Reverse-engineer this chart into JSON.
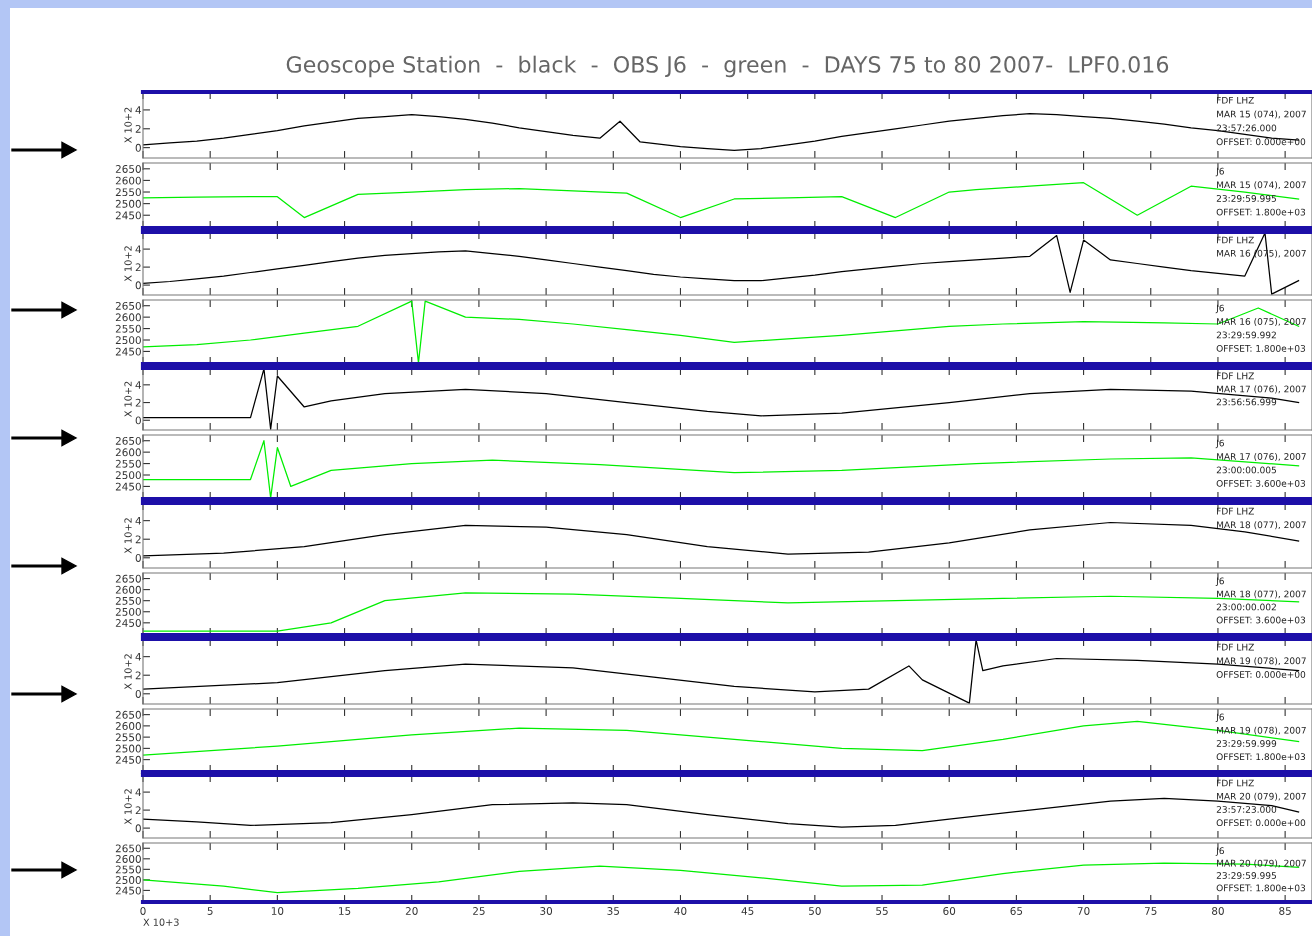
{
  "chart_data": [
    {
      "type": "line",
      "title": "Geoscope Station  -  black  -  OBS J6  -  green  -  DAYS 75 to 80 2007-  LPF0.016",
      "ylabel": "X 10+2",
      "tick_labels": "y",
      "xlim": [
        0,
        87
      ],
      "xticks": [
        0,
        5,
        10,
        15,
        20,
        25,
        30,
        35,
        40,
        45,
        50,
        55,
        60,
        65,
        70,
        75,
        80,
        85
      ],
      "ylim": [
        -1.1,
        5.9
      ],
      "yticks": [
        0,
        2,
        4
      ],
      "x": [
        0,
        2,
        4,
        6,
        8,
        10,
        12,
        14,
        16,
        18,
        20,
        22,
        24,
        26,
        28,
        30,
        32,
        34,
        35.5,
        37,
        40,
        42,
        44,
        46,
        48,
        50,
        52,
        54,
        56,
        58,
        60,
        62,
        64,
        66,
        68,
        70,
        72,
        74,
        76,
        78,
        80,
        82,
        84,
        86
      ],
      "series": [
        {
          "color": "#000000",
          "values": [
            0.3,
            0.5,
            0.7,
            1.0,
            1.4,
            1.8,
            2.3,
            2.7,
            3.1,
            3.3,
            3.5,
            3.3,
            3.0,
            2.6,
            2.1,
            1.7,
            1.3,
            1.0,
            2.8,
            0.6,
            0.1,
            -0.1,
            -0.3,
            -0.1,
            0.3,
            0.7,
            1.2,
            1.6,
            2.0,
            2.4,
            2.8,
            3.1,
            3.4,
            3.6,
            3.5,
            3.3,
            3.1,
            2.8,
            2.5,
            2.1,
            1.8,
            1.4,
            1.0,
            0.8
          ]
        }
      ],
      "annotations": [
        "FDF LHZ",
        "MAR 15 (074), 2007",
        "23:57:26.000",
        "OFFSET: 0.000e+00"
      ]
    },
    {
      "type": "line",
      "tick_labels": "y",
      "xlim": [
        0,
        87
      ],
      "xticks": [
        0,
        5,
        10,
        15,
        20,
        25,
        30,
        35,
        40,
        45,
        50,
        55,
        60,
        65,
        70,
        75,
        80,
        85
      ],
      "ylim": [
        2395,
        2675
      ],
      "yticks": [
        2450,
        2500,
        2550,
        2600,
        2650
      ],
      "x": [
        0,
        4,
        8,
        10,
        12,
        16,
        20,
        24,
        28,
        32,
        36,
        40,
        44,
        48,
        52,
        56,
        60,
        62,
        66,
        70,
        74,
        78,
        82,
        86
      ],
      "series": [
        {
          "color": "#00ee00",
          "values": [
            2525,
            2528,
            2530,
            2530,
            2440,
            2540,
            2550,
            2560,
            2565,
            2555,
            2545,
            2440,
            2520,
            2525,
            2530,
            2440,
            2550,
            2560,
            2575,
            2590,
            2450,
            2575,
            2550,
            2520
          ]
        }
      ],
      "annotations": [
        "J6",
        "MAR 15 (074), 2007",
        "23:29:59.995",
        "OFFSET: 1.800e+03"
      ]
    },
    {
      "type": "line",
      "ylabel": "X 10+2",
      "tick_labels": "y",
      "xlim": [
        0,
        87
      ],
      "xticks": [
        0,
        5,
        10,
        15,
        20,
        25,
        30,
        35,
        40,
        45,
        50,
        55,
        60,
        65,
        70,
        75,
        80,
        85
      ],
      "ylim": [
        -1.1,
        5.9
      ],
      "yticks": [
        0,
        2,
        4
      ],
      "x": [
        0,
        2,
        4,
        6,
        8,
        10,
        12,
        14,
        16,
        18,
        20,
        22,
        24,
        26,
        28,
        30,
        32,
        34,
        36,
        38,
        40,
        42,
        44,
        46,
        48,
        50,
        52,
        54,
        56,
        58,
        60,
        62,
        64,
        66,
        68,
        69,
        70,
        72,
        74,
        76,
        78,
        80,
        82,
        83.5,
        84,
        86
      ],
      "series": [
        {
          "color": "#000000",
          "values": [
            0.2,
            0.4,
            0.7,
            1.0,
            1.4,
            1.8,
            2.2,
            2.6,
            3.0,
            3.3,
            3.5,
            3.7,
            3.8,
            3.5,
            3.2,
            2.8,
            2.4,
            2.0,
            1.6,
            1.2,
            0.9,
            0.7,
            0.5,
            0.5,
            0.8,
            1.1,
            1.5,
            1.8,
            2.1,
            2.4,
            2.6,
            2.8,
            3.0,
            3.2,
            5.5,
            -0.8,
            5.0,
            2.8,
            2.4,
            2.0,
            1.6,
            1.3,
            1.0,
            5.8,
            -1.0,
            0.5
          ]
        }
      ],
      "annotations": [
        "FDF LHZ",
        "MAR 16 (075), 2007"
      ]
    },
    {
      "type": "line",
      "tick_labels": "y",
      "xlim": [
        0,
        87
      ],
      "xticks": [
        0,
        5,
        10,
        15,
        20,
        25,
        30,
        35,
        40,
        45,
        50,
        55,
        60,
        65,
        70,
        75,
        80,
        85
      ],
      "ylim": [
        2395,
        2675
      ],
      "yticks": [
        2450,
        2500,
        2550,
        2600,
        2650
      ],
      "x": [
        0,
        4,
        8,
        12,
        16,
        20,
        20.5,
        21,
        24,
        28,
        32,
        36,
        40,
        44,
        48,
        52,
        56,
        60,
        64,
        70,
        76,
        80,
        83,
        86
      ],
      "series": [
        {
          "color": "#00ee00",
          "values": [
            2470,
            2480,
            2500,
            2530,
            2560,
            2670,
            2400,
            2670,
            2600,
            2590,
            2570,
            2545,
            2520,
            2490,
            2505,
            2520,
            2540,
            2560,
            2570,
            2580,
            2575,
            2570,
            2640,
            2560
          ]
        }
      ],
      "annotations": [
        "J6",
        "MAR 16 (075), 2007",
        "23:29:59.992",
        "OFFSET: 1.800e+03"
      ]
    },
    {
      "type": "line",
      "ylabel": "X 10+2",
      "tick_labels": "y",
      "xlim": [
        0,
        87
      ],
      "xticks": [
        0,
        5,
        10,
        15,
        20,
        25,
        30,
        35,
        40,
        45,
        50,
        55,
        60,
        65,
        70,
        75,
        80,
        85
      ],
      "ylim": [
        -1.1,
        5.9
      ],
      "yticks": [
        0,
        2,
        4
      ],
      "x": [
        0,
        4,
        8,
        9,
        9.5,
        10,
        12,
        14,
        18,
        24,
        30,
        36,
        42,
        46,
        52,
        60,
        66,
        72,
        78,
        84,
        86
      ],
      "series": [
        {
          "color": "#000000",
          "values": [
            0.3,
            0.3,
            0.3,
            5.8,
            -1.0,
            5.0,
            1.5,
            2.2,
            3.0,
            3.5,
            3.0,
            2.0,
            1.0,
            0.5,
            0.8,
            2.0,
            3.0,
            3.5,
            3.3,
            2.5,
            2.0
          ]
        }
      ],
      "annotations": [
        "FDF LHZ",
        "MAR 17 (076), 2007",
        "23:56:56.999"
      ]
    },
    {
      "type": "line",
      "tick_labels": "y",
      "xlim": [
        0,
        87
      ],
      "xticks": [
        0,
        5,
        10,
        15,
        20,
        25,
        30,
        35,
        40,
        45,
        50,
        55,
        60,
        65,
        70,
        75,
        80,
        85
      ],
      "ylim": [
        2395,
        2675
      ],
      "yticks": [
        2450,
        2500,
        2550,
        2600,
        2650
      ],
      "x": [
        0,
        4,
        8,
        9,
        9.5,
        10,
        11,
        14,
        20,
        26,
        34,
        44,
        52,
        62,
        72,
        78,
        86
      ],
      "series": [
        {
          "color": "#00ee00",
          "values": [
            2480,
            2480,
            2480,
            2650,
            2400,
            2620,
            2450,
            2520,
            2550,
            2565,
            2545,
            2510,
            2520,
            2550,
            2570,
            2575,
            2540
          ]
        }
      ],
      "annotations": [
        "J6",
        "MAR 17 (076), 2007",
        "23:00:00.005",
        "OFFSET: 3.600e+03"
      ]
    },
    {
      "type": "line",
      "ylabel": "X 10+2",
      "tick_labels": "y",
      "xlim": [
        0,
        87
      ],
      "xticks": [
        0,
        5,
        10,
        15,
        20,
        25,
        30,
        35,
        40,
        45,
        50,
        55,
        60,
        65,
        70,
        75,
        80,
        85
      ],
      "ylim": [
        -1.1,
        5.9
      ],
      "yticks": [
        0,
        2,
        4
      ],
      "x": [
        0,
        6,
        12,
        18,
        24,
        30,
        36,
        42,
        48,
        54,
        60,
        66,
        72,
        78,
        82,
        86
      ],
      "series": [
        {
          "color": "#000000",
          "values": [
            0.2,
            0.5,
            1.2,
            2.5,
            3.5,
            3.3,
            2.5,
            1.2,
            0.4,
            0.6,
            1.6,
            3.0,
            3.8,
            3.5,
            2.8,
            1.8
          ]
        }
      ],
      "annotations": [
        "FDF LHZ",
        "MAR 18 (077), 2007"
      ]
    },
    {
      "type": "line",
      "tick_labels": "y",
      "xlim": [
        0,
        87
      ],
      "xticks": [
        0,
        5,
        10,
        15,
        20,
        25,
        30,
        35,
        40,
        45,
        50,
        55,
        60,
        65,
        70,
        75,
        80,
        85
      ],
      "ylim": [
        2395,
        2675
      ],
      "yticks": [
        2450,
        2500,
        2550,
        2600,
        2650
      ],
      "x": [
        0,
        10,
        14,
        18,
        24,
        32,
        40,
        48,
        56,
        64,
        72,
        80,
        86
      ],
      "series": [
        {
          "color": "#00ee00",
          "values": [
            2412,
            2412,
            2450,
            2550,
            2585,
            2580,
            2560,
            2540,
            2550,
            2560,
            2570,
            2560,
            2545
          ]
        }
      ],
      "annotations": [
        "J6",
        "MAR 18 (077), 2007",
        "23:00:00.002",
        "OFFSET: 3.600e+03"
      ]
    },
    {
      "type": "line",
      "ylabel": "X 10+2",
      "tick_labels": "y",
      "xlim": [
        0,
        87
      ],
      "xticks": [
        0,
        5,
        10,
        15,
        20,
        25,
        30,
        35,
        40,
        45,
        50,
        55,
        60,
        65,
        70,
        75,
        80,
        85
      ],
      "ylim": [
        -1.1,
        5.9
      ],
      "yticks": [
        0,
        2,
        4
      ],
      "x": [
        0,
        10,
        18,
        24,
        32,
        38,
        44,
        50,
        54,
        57,
        58,
        61.5,
        62,
        62.5,
        64,
        68,
        74,
        80,
        86
      ],
      "series": [
        {
          "color": "#000000",
          "values": [
            0.5,
            1.2,
            2.5,
            3.2,
            2.8,
            1.8,
            0.8,
            0.2,
            0.5,
            3.0,
            1.5,
            -1.0,
            5.8,
            2.5,
            3.0,
            3.8,
            3.6,
            3.2,
            2.5
          ]
        }
      ],
      "annotations": [
        "FDF LHZ",
        "MAR 19 (078), 2007",
        "OFFSET: 0.000e+00"
      ]
    },
    {
      "type": "line",
      "tick_labels": "y",
      "xlim": [
        0,
        87
      ],
      "xticks": [
        0,
        5,
        10,
        15,
        20,
        25,
        30,
        35,
        40,
        45,
        50,
        55,
        60,
        65,
        70,
        75,
        80,
        85
      ],
      "ylim": [
        2395,
        2675
      ],
      "yticks": [
        2450,
        2500,
        2550,
        2600,
        2650
      ],
      "x": [
        0,
        10,
        20,
        28,
        36,
        44,
        52,
        58,
        64,
        70,
        74,
        80,
        86
      ],
      "series": [
        {
          "color": "#00ee00",
          "values": [
            2470,
            2510,
            2560,
            2590,
            2580,
            2540,
            2500,
            2490,
            2540,
            2600,
            2620,
            2580,
            2530
          ]
        }
      ],
      "annotations": [
        "J6",
        "MAR 19 (078), 2007",
        "23:29:59.999",
        "OFFSET: 1.800e+03"
      ]
    },
    {
      "type": "line",
      "ylabel": "X 10+2",
      "tick_labels": "y",
      "xlim": [
        0,
        87
      ],
      "xticks": [
        0,
        5,
        10,
        15,
        20,
        25,
        30,
        35,
        40,
        45,
        50,
        55,
        60,
        65,
        70,
        75,
        80,
        85
      ],
      "ylim": [
        -1.1,
        5.9
      ],
      "yticks": [
        0,
        2,
        4
      ],
      "x": [
        0,
        4,
        8,
        14,
        20,
        26,
        32,
        36,
        42,
        48,
        52,
        56,
        60,
        66,
        72,
        76,
        80,
        84,
        86
      ],
      "series": [
        {
          "color": "#000000",
          "values": [
            1.0,
            0.7,
            0.3,
            0.6,
            1.5,
            2.6,
            2.8,
            2.6,
            1.5,
            0.5,
            0.1,
            0.3,
            1.0,
            2.0,
            3.0,
            3.3,
            3.0,
            2.5,
            1.8
          ]
        }
      ],
      "annotations": [
        "FDF LHZ",
        "MAR 20 (079), 2007",
        "23:57:23.000",
        "OFFSET: 0.000e+00"
      ]
    },
    {
      "type": "line",
      "xlabel": "X 10+3",
      "xlim": [
        0,
        87
      ],
      "xticks": [
        0,
        5,
        10,
        15,
        20,
        25,
        30,
        35,
        40,
        45,
        50,
        55,
        60,
        65,
        70,
        75,
        80,
        85
      ],
      "ylim": [
        2395,
        2675
      ],
      "yticks": [
        2450,
        2500,
        2550,
        2600,
        2650
      ],
      "x": [
        0,
        6,
        10,
        16,
        22,
        28,
        34,
        40,
        46,
        52,
        58,
        64,
        70,
        76,
        82,
        86
      ],
      "series": [
        {
          "color": "#00ee00",
          "values": [
            2500,
            2470,
            2440,
            2460,
            2490,
            2540,
            2565,
            2545,
            2510,
            2470,
            2475,
            2530,
            2570,
            2580,
            2575,
            2560
          ]
        }
      ],
      "annotations": [
        "J6",
        "MAR 20 (079), 2007",
        "23:29:59.995",
        "OFFSET: 1.800e+03"
      ]
    }
  ]
}
